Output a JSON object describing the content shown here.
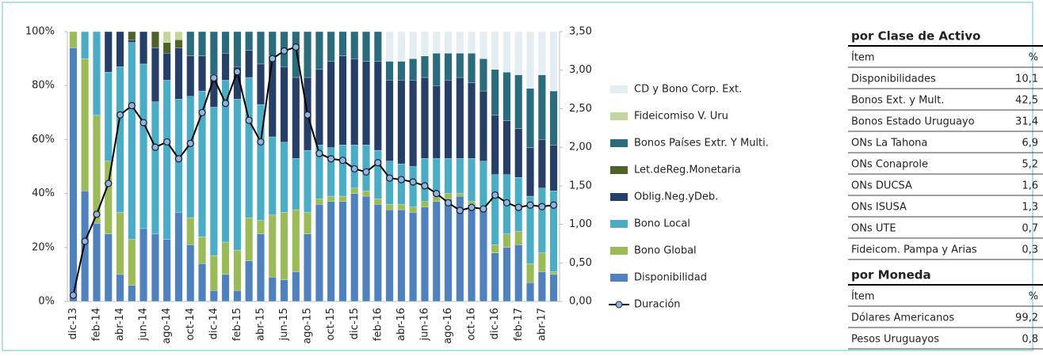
{
  "chart_data": {
    "type": "bar",
    "categories": [
      "dic-13",
      null,
      "feb-14",
      null,
      "abr-14",
      null,
      "jun-14",
      null,
      "ago-14",
      null,
      "oct-14",
      null,
      "dic-14",
      null,
      "feb-15",
      null,
      "abr-15",
      null,
      "jun-15",
      null,
      "ago-15",
      null,
      "oct-15",
      null,
      "dic-15",
      null,
      "feb-16",
      null,
      "abr-16",
      null,
      "jun-16",
      null,
      "ago-16",
      null,
      "oct-16",
      null,
      "dic-16",
      null,
      "feb-17",
      null,
      "abr-17",
      null
    ],
    "stacked": true,
    "ylim": [
      0,
      100
    ],
    "yticks": [
      {
        "value": 0,
        "label": "0%"
      },
      {
        "value": 20,
        "label": "20%"
      },
      {
        "value": 40,
        "label": "40%"
      },
      {
        "value": 60,
        "label": "60%"
      },
      {
        "value": 80,
        "label": "80%"
      },
      {
        "value": 100,
        "label": "100%"
      }
    ],
    "y2lim": [
      0,
      3.5
    ],
    "y2ticks": [
      {
        "value": 0,
        "label": "0,00"
      },
      {
        "value": 0.5,
        "label": "0,50"
      },
      {
        "value": 1,
        "label": "1,00"
      },
      {
        "value": 1.5,
        "label": "1,50"
      },
      {
        "value": 2,
        "label": "2,00"
      },
      {
        "value": 2.5,
        "label": "2,50"
      },
      {
        "value": 3,
        "label": "3,00"
      },
      {
        "value": 3.5,
        "label": "3,50"
      }
    ],
    "series": [
      {
        "name": "Disponibilidad",
        "color": "#4f81bd",
        "values": [
          94,
          41,
          29,
          25,
          10,
          6,
          27,
          25,
          23,
          33,
          21,
          14,
          4,
          10,
          4,
          15,
          25,
          9,
          8,
          11,
          25,
          36,
          37,
          37,
          40,
          39,
          36,
          34,
          34,
          33,
          35,
          37,
          38,
          39,
          36,
          34,
          18,
          20,
          21,
          7,
          11,
          10
        ]
      },
      {
        "name": "Bono Global",
        "color": "#9bbb59",
        "values": [
          6,
          49,
          40,
          27,
          23,
          17,
          0,
          0,
          0,
          0,
          10,
          10,
          13,
          12,
          15,
          16,
          5,
          23,
          25,
          23,
          8,
          2,
          2,
          2,
          2,
          2,
          2,
          2,
          2,
          2,
          2,
          2,
          2,
          1,
          1,
          1,
          3,
          5,
          5,
          7,
          7,
          1
        ]
      },
      {
        "name": "Bono Local",
        "color": "#4bacc6",
        "values": [
          0,
          10,
          31,
          33,
          54,
          73,
          61,
          49,
          59,
          42,
          45,
          54,
          55,
          60,
          56,
          52,
          43,
          29,
          26,
          19,
          23,
          20,
          18,
          19,
          16,
          17,
          18,
          16,
          15,
          15,
          16,
          14,
          13,
          13,
          16,
          17,
          26,
          22,
          20,
          25,
          24,
          30
        ]
      },
      {
        "name": "Oblig.Neg.yDeb.",
        "color": "#253f66",
        "values": [
          0,
          0,
          0,
          15,
          13,
          1,
          12,
          20,
          10,
          19,
          15,
          13,
          12,
          10,
          12,
          10,
          15,
          30,
          28,
          30,
          27,
          28,
          32,
          33,
          32,
          31,
          33,
          30,
          31,
          32,
          30,
          27,
          29,
          30,
          28,
          26,
          22,
          20,
          18,
          18,
          18,
          17
        ]
      },
      {
        "name": "Let.deReg.Monetaria",
        "color": "#4f6228",
        "values": [
          0,
          0,
          0,
          0,
          0,
          3,
          0,
          6,
          4,
          3,
          0,
          0,
          0,
          0,
          0,
          0,
          0,
          0,
          0,
          0,
          0,
          0,
          0,
          0,
          0,
          0,
          0,
          0,
          0,
          0,
          0,
          0,
          0,
          0,
          0,
          0,
          0,
          0,
          0,
          0,
          0,
          0
        ]
      },
      {
        "name": "Bonos Países Extr. Y Multi.",
        "color": "#2a6b7c",
        "values": [
          0,
          0,
          0,
          0,
          0,
          0,
          0,
          0,
          0,
          0,
          9,
          9,
          16,
          8,
          13,
          7,
          12,
          9,
          13,
          17,
          17,
          14,
          11,
          9,
          10,
          11,
          11,
          7,
          7,
          8,
          8,
          12,
          10,
          9,
          11,
          12,
          17,
          18,
          20,
          22,
          24,
          20
        ]
      },
      {
        "name": "Fideicomiso V. Uru",
        "color": "#c3d69b",
        "values": [
          0,
          0,
          0,
          0,
          0,
          0,
          0,
          0,
          4,
          3,
          0,
          0,
          0,
          0,
          0,
          0,
          0,
          0,
          0,
          0,
          0,
          0,
          0,
          0,
          0,
          0,
          0,
          0,
          0,
          0,
          0,
          0,
          0,
          0,
          0,
          0,
          0,
          0,
          0,
          0,
          0,
          0
        ]
      },
      {
        "name": "CD y Bono Corp. Ext.",
        "color": "#e4eef2",
        "values": [
          0,
          0,
          0,
          0,
          0,
          0,
          0,
          0,
          0,
          0,
          0,
          0,
          0,
          0,
          0,
          0,
          0,
          0,
          0,
          0,
          0,
          0,
          0,
          0,
          0,
          0,
          0,
          11,
          11,
          10,
          9,
          8,
          8,
          8,
          8,
          10,
          14,
          15,
          16,
          21,
          16,
          22
        ]
      },
      {
        "name": "Duración",
        "color": "#000000",
        "marker_color": "#8db3e2",
        "type": "line",
        "axis": "y2",
        "values": [
          0.08,
          0.78,
          1.13,
          1.53,
          2.42,
          2.54,
          2.32,
          2.0,
          2.07,
          1.85,
          2.05,
          2.45,
          2.9,
          2.57,
          2.98,
          2.35,
          2.07,
          3.15,
          3.25,
          3.3,
          2.42,
          1.92,
          1.85,
          1.83,
          1.72,
          1.68,
          1.8,
          1.6,
          1.58,
          1.55,
          1.5,
          1.4,
          1.28,
          1.18,
          1.22,
          1.2,
          1.38,
          1.28,
          1.22,
          1.25,
          1.23,
          1.25
        ]
      }
    ],
    "legend": "right"
  },
  "table": {
    "sections": [
      {
        "title": "por Clase de Activo",
        "header": [
          "Ítem",
          "%"
        ],
        "rows": [
          [
            "Disponibilidades",
            "10,1"
          ],
          [
            "Bonos Ext. y Mult.",
            "42,5"
          ],
          [
            "Bonos Estado Uruguayo",
            "31,4"
          ],
          [
            "ONs La Tahona",
            "6,9"
          ],
          [
            "ONs Conaprole",
            "5,2"
          ],
          [
            "ONs DUCSA",
            "1,6"
          ],
          [
            "ONs ISUSA",
            "1,3"
          ],
          [
            "ONs UTE",
            "0,7"
          ],
          [
            "Fideicom. Pampa y Arias",
            "0,3"
          ]
        ]
      },
      {
        "title": "por Moneda",
        "header": [
          "Ítem",
          "%"
        ],
        "rows": [
          [
            "Dólares Americanos",
            "99,2"
          ],
          [
            "Pesos Uruguayos",
            "0,8"
          ]
        ]
      }
    ]
  }
}
